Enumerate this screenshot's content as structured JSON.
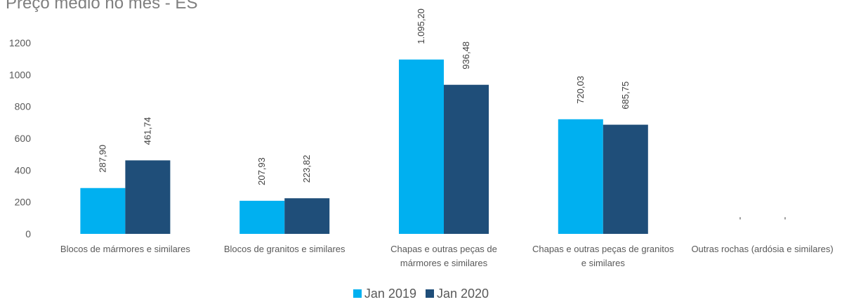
{
  "chart_data": {
    "type": "bar",
    "title": "Preço médio no mês - ES",
    "categories": [
      [
        "Blocos de mármores e similares"
      ],
      [
        "Blocos de granitos e similares"
      ],
      [
        "Chapas e outras peças de",
        "mármores e similares"
      ],
      [
        "Chapas e outras peças de granitos",
        "e similares"
      ],
      [
        "Outras rochas (ardósia e similares)"
      ]
    ],
    "series": [
      {
        "name": "Jan 2019",
        "color": "#00b0f0",
        "values": [
          287.9,
          207.93,
          1095.2,
          720.03,
          null
        ],
        "labels": [
          "287,90",
          "207,93",
          "1.095,20",
          "720,03",
          "-"
        ]
      },
      {
        "name": "Jan 2020",
        "color": "#1f4e79",
        "values": [
          461.74,
          223.82,
          936.48,
          685.75,
          null
        ],
        "labels": [
          "461,74",
          "223,82",
          "936,48",
          "685,75",
          "-"
        ]
      }
    ],
    "ylim": [
      0,
      1200
    ],
    "yticks": [
      0,
      200,
      400,
      600,
      800,
      1000,
      1200
    ],
    "grid": false,
    "legend_position": "bottom"
  }
}
